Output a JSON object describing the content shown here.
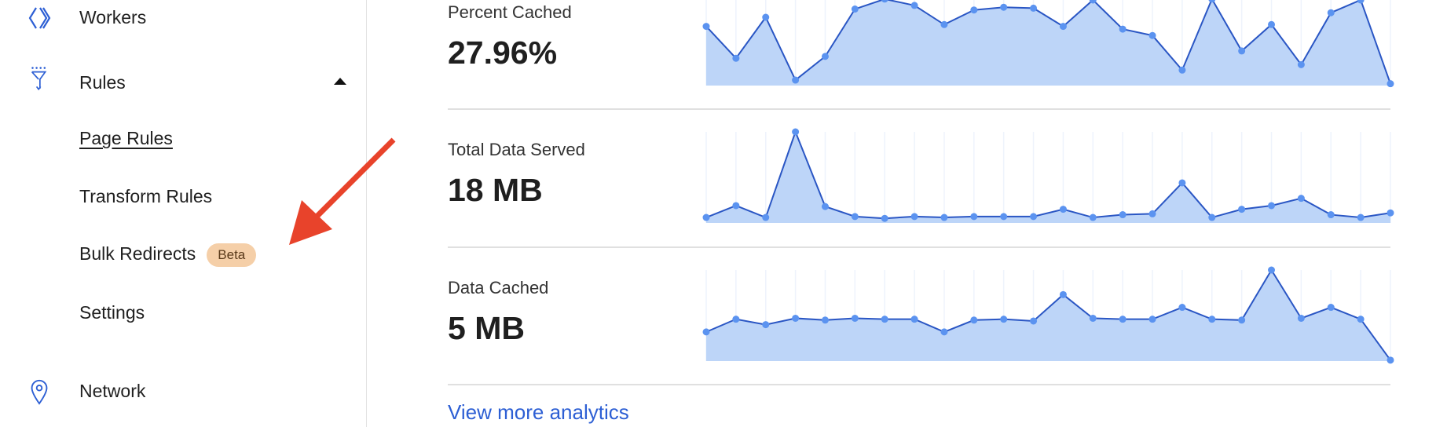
{
  "sidebar": {
    "items": [
      {
        "label": "Workers",
        "icon": "workers-icon"
      },
      {
        "label": "Rules",
        "icon": "rules-funnel-icon",
        "expanded": true
      },
      {
        "label": "Network",
        "icon": "location-pin-icon"
      }
    ],
    "rules_sub": [
      {
        "label": "Page Rules"
      },
      {
        "label": "Transform Rules"
      },
      {
        "label": "Bulk Redirects",
        "badge": "Beta"
      },
      {
        "label": "Settings"
      }
    ]
  },
  "metrics": [
    {
      "label": "Percent Cached",
      "value": "27.96%"
    },
    {
      "label": "Total Data Served",
      "value": "18 MB"
    },
    {
      "label": "Data Cached",
      "value": "5 MB"
    }
  ],
  "view_more": "View more analytics",
  "colors": {
    "accent": "#2d5fd4",
    "line": "#2a56c4",
    "fill": "#bdd5f8",
    "point": "#5b93f0",
    "badge_bg": "#f5cfa8",
    "arrow": "#e8432b"
  },
  "chart_data": [
    {
      "type": "area",
      "series_label": "Percent Cached",
      "values": [
        65,
        30,
        75,
        6,
        32,
        84,
        95,
        88,
        67,
        83,
        86,
        85,
        65,
        94,
        62,
        55,
        17,
        95,
        38,
        67,
        23,
        80,
        94,
        2
      ],
      "grid": true
    },
    {
      "type": "area",
      "series_label": "Total Data Served",
      "values": [
        6,
        19,
        6,
        100,
        18,
        7,
        5,
        7,
        6,
        7,
        7,
        7,
        15,
        6,
        9,
        10,
        44,
        6,
        15,
        19,
        27,
        9,
        6,
        11
      ],
      "grid": true
    },
    {
      "type": "area",
      "series_label": "Data Cached",
      "values": [
        32,
        46,
        40,
        47,
        45,
        47,
        46,
        46,
        32,
        45,
        46,
        44,
        73,
        47,
        46,
        46,
        59,
        46,
        45,
        100,
        47,
        59,
        46,
        1
      ],
      "grid": true
    }
  ]
}
